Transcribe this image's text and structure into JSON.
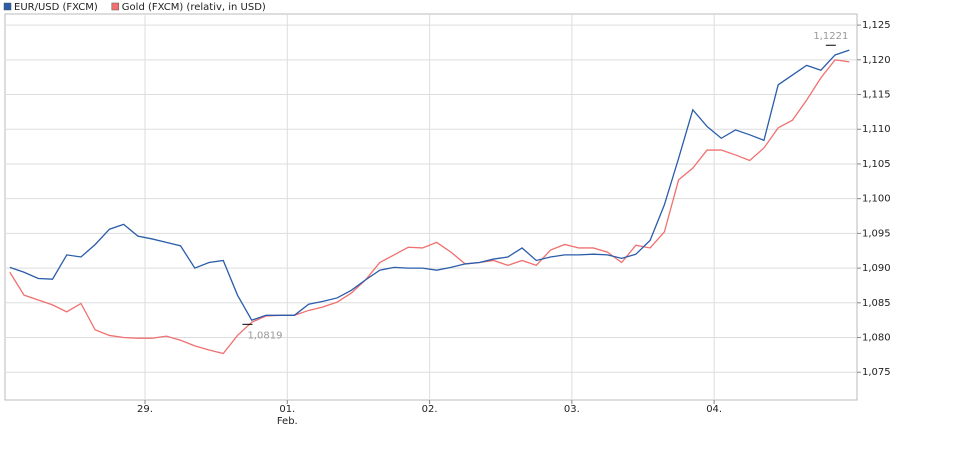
{
  "chart_data": {
    "type": "line",
    "x": [
      -0.95,
      -0.85,
      -0.75,
      -0.65,
      -0.55,
      -0.45,
      -0.35,
      -0.25,
      -0.15,
      -0.05,
      0.05,
      0.15,
      0.25,
      0.35,
      0.45,
      0.55,
      0.65,
      0.75,
      0.85,
      0.95,
      1.05,
      1.15,
      1.25,
      1.35,
      1.45,
      1.55,
      1.65,
      1.75,
      1.85,
      1.95,
      2.05,
      2.15,
      2.25,
      2.35,
      2.45,
      2.55,
      2.65,
      2.75,
      2.85,
      2.95,
      3.05,
      3.15,
      3.25,
      3.35,
      3.45,
      3.55,
      3.65,
      3.75,
      3.85,
      3.95,
      4.05,
      4.15,
      4.25,
      4.35,
      4.45,
      4.55,
      4.65,
      4.75,
      4.85,
      4.95
    ],
    "series": [
      {
        "name": "EUR/USD (FXCM)",
        "color": "#2a5caa",
        "values": [
          1.0901,
          1.0894,
          1.0885,
          1.0884,
          1.0919,
          1.0916,
          1.0934,
          1.0956,
          1.0963,
          1.0946,
          1.0942,
          1.0937,
          1.0932,
          1.09,
          1.0908,
          1.0911,
          1.0861,
          1.0825,
          1.0832,
          1.0832,
          1.0832,
          1.0848,
          1.0852,
          1.0857,
          1.0868,
          1.0883,
          1.0897,
          1.0901,
          1.09,
          1.09,
          1.0897,
          1.0901,
          1.0906,
          1.0908,
          1.0913,
          1.0916,
          1.0929,
          1.0911,
          1.0916,
          1.0919,
          1.0919,
          1.092,
          1.0919,
          1.0914,
          1.092,
          1.094,
          1.0991,
          1.1058,
          1.1128,
          1.1104,
          1.1087,
          1.1099,
          1.1092,
          1.1084,
          1.1164,
          1.1178,
          1.1192,
          1.1185,
          1.1207,
          1.1214
        ]
      },
      {
        "name": "Gold (FXCM) (relativ, in USD)",
        "color": "#f07070",
        "values": [
          1.0894,
          1.0861,
          1.0854,
          1.0847,
          1.0837,
          1.0849,
          1.0811,
          1.0803,
          1.08,
          1.0799,
          1.0799,
          1.0802,
          1.0796,
          1.0788,
          1.0782,
          1.0777,
          1.0803,
          1.0822,
          1.0831,
          1.0832,
          1.0832,
          1.0839,
          1.0844,
          1.0851,
          1.0864,
          1.0883,
          1.0908,
          1.0919,
          1.093,
          1.0929,
          1.0937,
          1.0923,
          1.0906,
          1.0908,
          1.0911,
          1.0904,
          1.0911,
          1.0904,
          1.0926,
          1.0934,
          1.0929,
          1.0929,
          1.0923,
          1.0908,
          1.0933,
          1.0929,
          1.0952,
          1.1027,
          1.1044,
          1.107,
          1.107,
          1.1063,
          1.1055,
          1.1073,
          1.1102,
          1.1113,
          1.1142,
          1.1174,
          1.12,
          1.1197
        ]
      }
    ],
    "xlim": [
      -0.984,
      5.004
    ],
    "xticks": [
      {
        "value": 0,
        "label": "29."
      },
      {
        "value": 1,
        "label": "01."
      },
      {
        "value": 2,
        "label": "02."
      },
      {
        "value": 3,
        "label": "03."
      },
      {
        "value": 4,
        "label": "04."
      }
    ],
    "xtick_month": {
      "value": 1,
      "label": "Feb."
    },
    "ylim": [
      1.071,
      1.1266
    ],
    "yticks": [
      {
        "value": 1.075,
        "label": "1,075"
      },
      {
        "value": 1.08,
        "label": "1,080"
      },
      {
        "value": 1.085,
        "label": "1,085"
      },
      {
        "value": 1.09,
        "label": "1,090"
      },
      {
        "value": 1.095,
        "label": "1,095"
      },
      {
        "value": 1.1,
        "label": "1,100"
      },
      {
        "value": 1.105,
        "label": "1,105"
      },
      {
        "value": 1.11,
        "label": "1,110"
      },
      {
        "value": 1.115,
        "label": "1,115"
      },
      {
        "value": 1.12,
        "label": "1,120"
      },
      {
        "value": 1.125,
        "label": "1,125"
      }
    ],
    "annotations": [
      {
        "x": 4.82,
        "value": 1.1221,
        "label": "1,1221"
      },
      {
        "x": 0.72,
        "value": 1.0819,
        "label": "1,0819"
      }
    ],
    "grid": true
  }
}
